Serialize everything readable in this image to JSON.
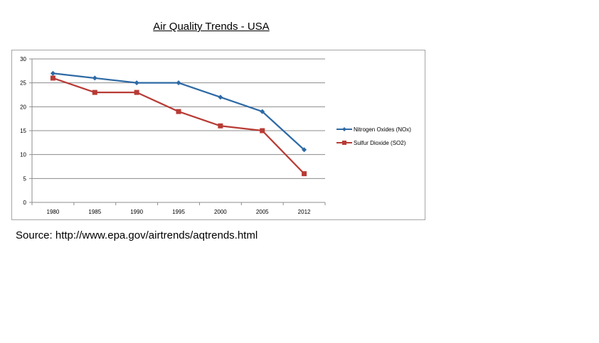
{
  "title": "Air Quality Trends - USA",
  "source": "Source: http://www.epa.gov/airtrends/aqtrends.html",
  "chart_data": {
    "type": "line",
    "title": "",
    "xlabel": "",
    "ylabel": "",
    "categories": [
      "1980",
      "1985",
      "1990",
      "1995",
      "2000",
      "2005",
      "2012"
    ],
    "ylim": [
      0,
      30
    ],
    "yticks": [
      "0",
      "5",
      "10",
      "15",
      "20",
      "25",
      "30"
    ],
    "grid": true,
    "legend": "right",
    "series": [
      {
        "name": "Nitrogen Oxides (NOx)",
        "values": [
          27,
          26,
          25,
          25,
          22,
          19,
          11
        ],
        "color": "#2e6aa5",
        "marker": "diamond"
      },
      {
        "name": "Sulfur Dioxide (SO2)",
        "values": [
          26,
          23,
          23,
          19,
          16,
          15,
          6
        ],
        "color": "#b83b35",
        "marker": "square"
      }
    ]
  }
}
